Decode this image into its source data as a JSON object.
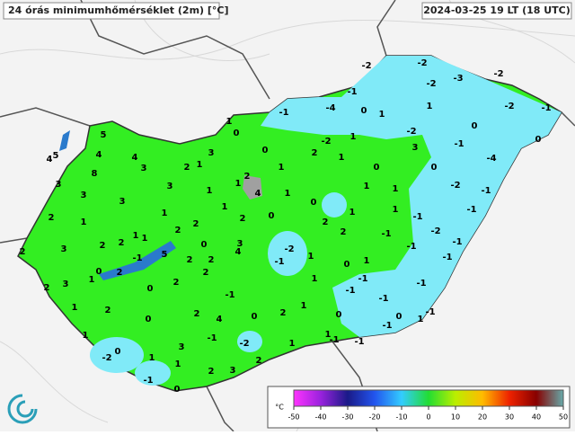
{
  "header": {
    "title": "24 órás minimumhőmérséklet (2m) [°C]",
    "timestamp": "2024-03-25 19 LT (18 UTC)"
  },
  "stations": {
    "values": [
      -2,
      -2,
      -2,
      -3,
      -2,
      -1,
      -4,
      0,
      1,
      1,
      -2,
      -1,
      -1,
      1,
      0,
      0,
      0,
      -2,
      -2,
      1,
      -1,
      5,
      0,
      2,
      1,
      3,
      -4,
      5,
      4,
      4,
      4,
      3,
      1,
      2,
      3,
      8,
      2,
      1,
      0,
      0,
      3,
      3,
      1,
      1,
      4,
      1,
      1,
      -2,
      -1,
      3,
      3,
      1,
      0,
      1,
      1,
      0,
      1,
      1,
      -1,
      -1,
      2,
      1,
      2,
      2,
      2,
      -2,
      1,
      2,
      2,
      -1,
      2,
      3,
      2,
      0,
      3,
      -2,
      -1,
      -1,
      2,
      1,
      -1,
      5,
      4,
      2,
      2,
      1,
      -1,
      -1,
      0,
      1,
      0,
      2,
      1,
      2,
      1,
      -1,
      2,
      3,
      0,
      2,
      -1,
      -1,
      -1,
      -1,
      1,
      2,
      2,
      1,
      2,
      4,
      0,
      0,
      0,
      0,
      -1,
      1,
      -1,
      1,
      -1,
      1,
      1,
      -1,
      -1,
      3,
      -2,
      0,
      -2,
      1,
      1,
      2,
      2,
      3,
      -1,
      0
    ]
  },
  "colorbar": {
    "unit": "°C",
    "ticks": [
      -50,
      -40,
      -30,
      -20,
      -10,
      0,
      10,
      20,
      30,
      40,
      50
    ],
    "colors": [
      "#ff33ff",
      "#9922dd",
      "#1a1a88",
      "#2255ee",
      "#33ccff",
      "#22dd33",
      "#bbee00",
      "#ffbb00",
      "#ee2200",
      "#880000",
      "#66aaaa"
    ]
  }
}
